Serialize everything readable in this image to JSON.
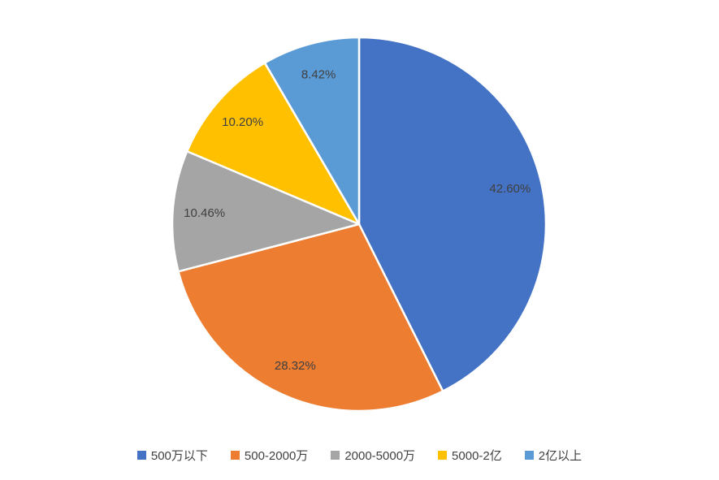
{
  "chart_data": {
    "type": "pie",
    "title": "",
    "legend_position": "bottom",
    "start_angle_deg": 0,
    "direction": "clockwise",
    "categories": [
      "500万以下",
      "500-2000万",
      "2000-5000万",
      "5000-2亿",
      "2亿以上"
    ],
    "values": [
      42.6,
      28.32,
      10.46,
      10.2,
      8.42
    ],
    "labels": [
      "42.60%",
      "28.32%",
      "10.46%",
      "10.20%",
      "8.42%"
    ],
    "colors": [
      "#4472C4",
      "#ED7D31",
      "#A5A5A5",
      "#FFC000",
      "#5B9BD5"
    ],
    "label_color": "#404040",
    "slice_border_color": "#FFFFFF",
    "background_color": "#FFFFFF"
  }
}
